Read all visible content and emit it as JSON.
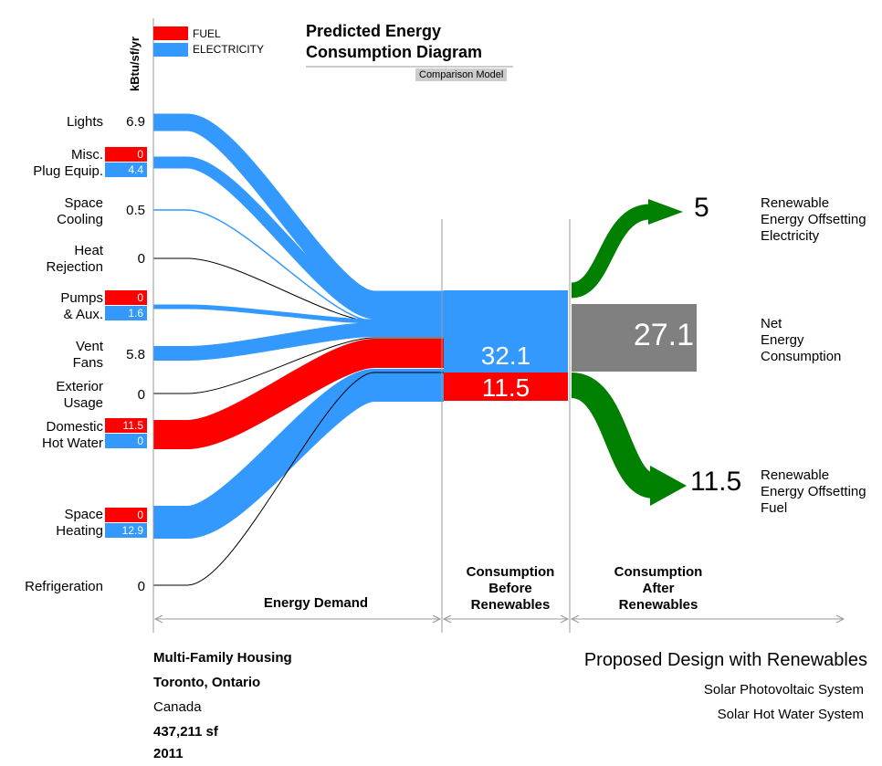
{
  "units": "kBtu/sf/yr",
  "legend": {
    "fuel": "FUEL",
    "electricity": "ELECTRICITY"
  },
  "title_line1": "Predicted Energy",
  "title_line2": "Consumption Diagram",
  "subtitle": "Comparison Model",
  "colors": {
    "fuel": "#ff0000",
    "electricity": "#3399ff",
    "renewable": "#008000",
    "net": "#808080"
  },
  "end_uses": [
    {
      "label": "Lights",
      "value": "6.9"
    },
    {
      "label": "Misc.\nPlug Equip.",
      "fuel": "0",
      "electricity": "4.4"
    },
    {
      "label": "Space\nCooling",
      "value": "0.5"
    },
    {
      "label": "Heat\nRejection",
      "value": "0"
    },
    {
      "label": "Pumps\n& Aux.",
      "fuel": "0",
      "electricity": "1.6"
    },
    {
      "label": "Vent\nFans",
      "value": "5.8"
    },
    {
      "label": "Exterior\nUsage",
      "value": "0"
    },
    {
      "label": "Domestic\nHot Water",
      "fuel": "11.5",
      "electricity": "0"
    },
    {
      "label": "Space\nHeating",
      "fuel": "0",
      "electricity": "12.9"
    },
    {
      "label": "Refrigeration",
      "value": "0"
    }
  ],
  "totals": {
    "electricity": "32.1",
    "fuel": "11.5"
  },
  "after": {
    "renewable_electricity_value": "5",
    "renewable_electricity_label": "Renewable\nEnergy Offsetting\nElectricity",
    "net_value": "27.1",
    "net_label": "Net\nEnergy\nConsumption",
    "renewable_fuel_value": "11.5",
    "renewable_fuel_label": "Renewable\nEnergy Offsetting\nFuel"
  },
  "sections": {
    "demand": "Energy Demand",
    "before": "Consumption\nBefore\nRenewables",
    "after": "Consumption\nAfter\nRenewables"
  },
  "project": {
    "type": "Multi-Family Housing",
    "location": "Toronto, Ontario",
    "country": "Canada",
    "area": "437,211 sf",
    "year": "2011"
  },
  "design": {
    "title": "Proposed Design with Renewables",
    "system1": "Solar Photovoltaic System",
    "system2": "Solar Hot Water System"
  }
}
